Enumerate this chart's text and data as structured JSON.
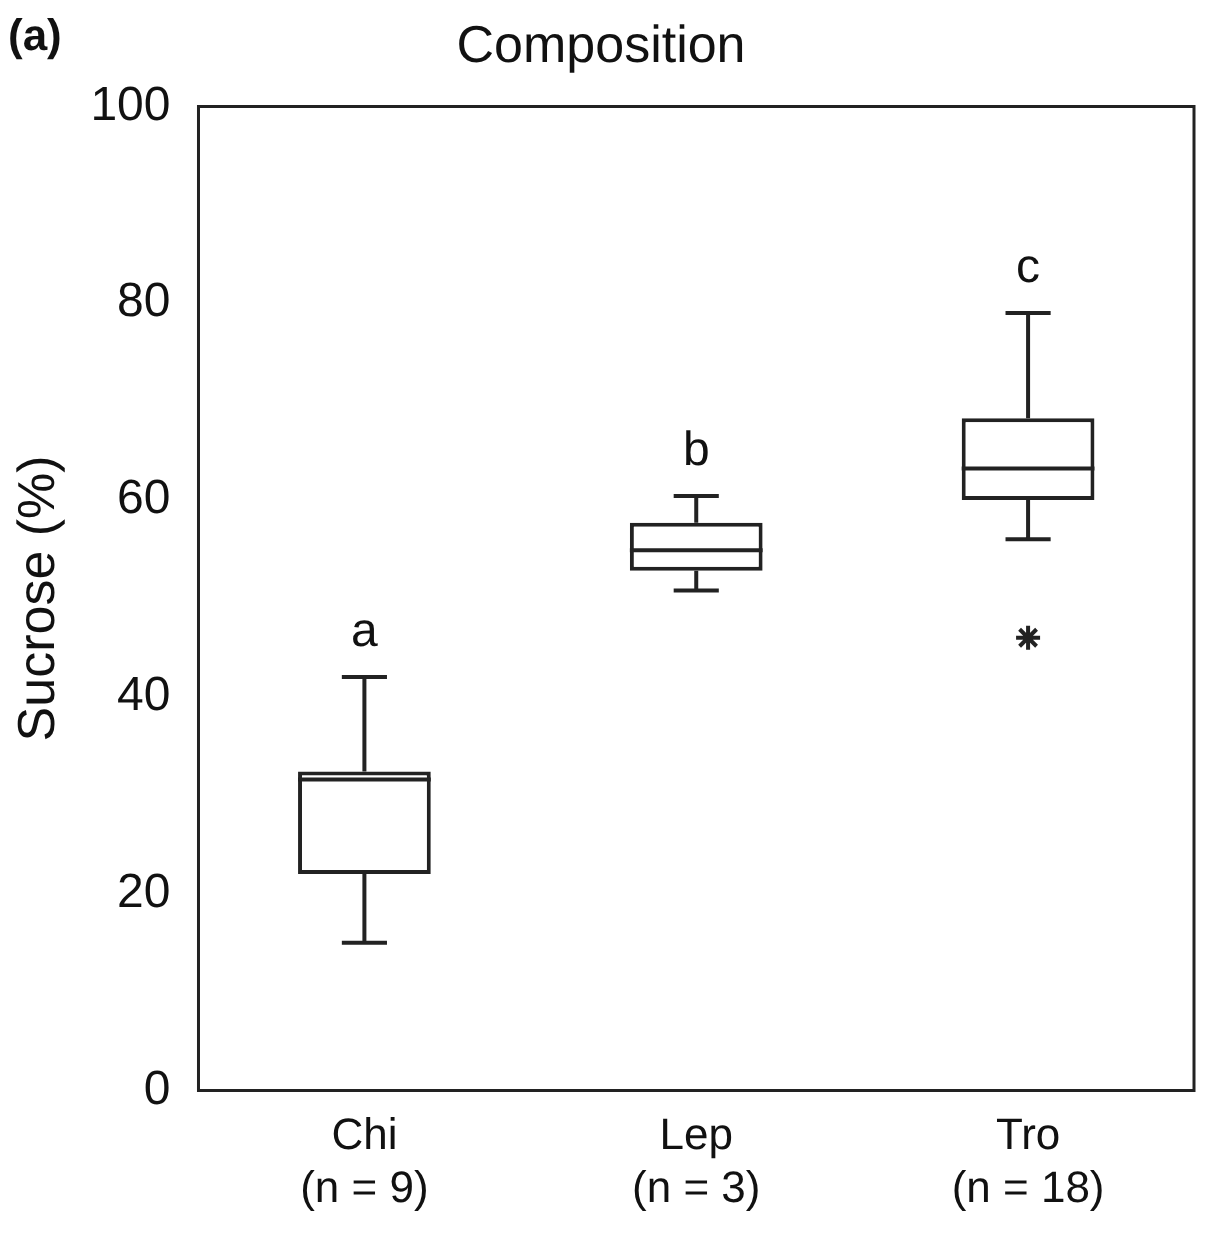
{
  "chart_data": {
    "type": "box",
    "title": "Composition",
    "ylabel": "Sucrose (%)",
    "categories": [
      "Chi\n(n = 9)",
      "Lep\n(n = 3)",
      "Tro\n(n = 18)"
    ],
    "boxes": [
      {
        "low": 15,
        "q1": 22,
        "median": 31.6,
        "q3": 32.4,
        "high": 42
      },
      {
        "low": 50.8,
        "q1": 52.8,
        "median": 54.9,
        "q3": 57.7,
        "high": 60.4
      },
      {
        "low": 56,
        "q1": 60,
        "median": 63.2,
        "q3": 68.3,
        "high": 79,
        "outliers": [
          46
        ]
      }
    ],
    "ylim": [
      0,
      100
    ],
    "yticks": [
      0,
      20,
      40,
      60,
      80,
      100
    ],
    "grid": false,
    "legend": false,
    "annotations": [
      "(a)",
      {
        "text": "a",
        "x": "Chi\n(n = 9)",
        "y": 42
      },
      {
        "text": "b",
        "x": "Lep\n(n = 3)",
        "y": 60.4
      },
      {
        "text": "c",
        "x": "Tro\n(n = 18)",
        "y": 79
      }
    ]
  }
}
